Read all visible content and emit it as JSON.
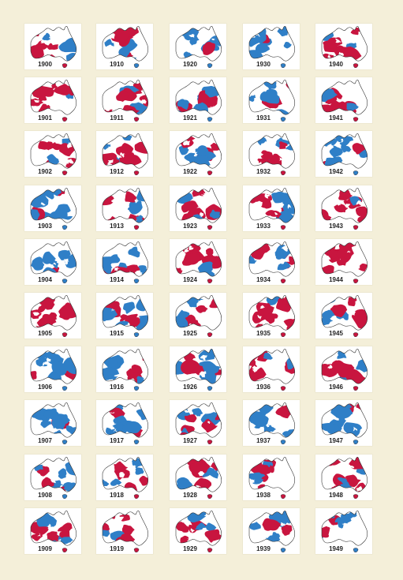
{
  "colors": {
    "page": "#f4efd9",
    "tile": "#ffffff",
    "red": "#c8153f",
    "blue": "#2f7fc7",
    "outline": "#333333"
  },
  "columns": [
    [
      "1900",
      "1901",
      "1902",
      "1903",
      "1904",
      "1905",
      "1906",
      "1907",
      "1908",
      "1909"
    ],
    [
      "1910",
      "1911",
      "1912",
      "1913",
      "1914",
      "1915",
      "1916",
      "1917",
      "1918",
      "1919"
    ],
    [
      "1920",
      "1921",
      "1922",
      "1923",
      "1924",
      "1925",
      "1926",
      "1927",
      "1928",
      "1929"
    ],
    [
      "1930",
      "1931",
      "1932",
      "1933",
      "1934",
      "1935",
      "1936",
      "1937",
      "1938",
      "1939"
    ],
    [
      "1940",
      "1941",
      "1942",
      "1943",
      "1944",
      "1945",
      "1946",
      "1947",
      "1948",
      "1949"
    ]
  ],
  "red_share": [
    [
      0.55,
      0.7,
      0.8,
      0.25,
      0.3,
      0.9,
      0.35,
      0.4,
      0.5,
      0.55
    ],
    [
      0.35,
      0.8,
      0.7,
      0.65,
      0.35,
      0.4,
      0.25,
      0.15,
      0.55,
      0.75
    ],
    [
      0.25,
      0.3,
      0.8,
      0.55,
      0.9,
      0.6,
      0.45,
      0.7,
      0.85,
      0.8
    ],
    [
      0.3,
      0.25,
      0.55,
      0.65,
      0.6,
      0.85,
      0.8,
      0.35,
      0.7,
      0.45
    ],
    [
      0.85,
      0.55,
      0.2,
      0.6,
      0.85,
      0.6,
      0.55,
      0.25,
      0.55,
      0.35
    ]
  ]
}
